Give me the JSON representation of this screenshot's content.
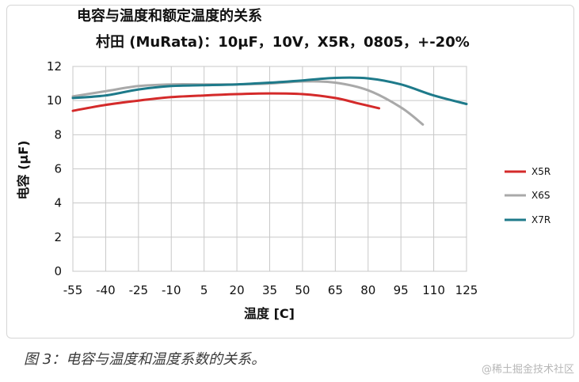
{
  "chart_data": {
    "type": "line",
    "title_line1": "电容与温度和额定温度的关系",
    "title_line2": "村田 (MuRata)：10μF，10V，X5R，0805，+-20%",
    "xlabel": "温度 [C]",
    "ylabel": "电容 (μF)",
    "x_ticks": [
      "-55",
      "-40",
      "-25",
      "-10",
      "5",
      "20",
      "35",
      "50",
      "65",
      "80",
      "95",
      "110",
      "125"
    ],
    "y_ticks": [
      "0",
      "2",
      "4",
      "6",
      "8",
      "10",
      "12"
    ],
    "xlim": [
      -55,
      125
    ],
    "ylim": [
      0,
      12
    ],
    "grid": true,
    "legend_position": "right",
    "series": [
      {
        "name": "X5R",
        "color": "#d42a2a",
        "points": [
          [
            -55,
            9.4
          ],
          [
            -40,
            9.75
          ],
          [
            -25,
            10.0
          ],
          [
            -10,
            10.2
          ],
          [
            5,
            10.3
          ],
          [
            20,
            10.38
          ],
          [
            35,
            10.42
          ],
          [
            50,
            10.38
          ],
          [
            65,
            10.15
          ],
          [
            75,
            9.85
          ],
          [
            85,
            9.55
          ]
        ]
      },
      {
        "name": "X6S",
        "color": "#a9a9a9",
        "points": [
          [
            -55,
            10.25
          ],
          [
            -40,
            10.55
          ],
          [
            -25,
            10.85
          ],
          [
            -10,
            10.95
          ],
          [
            5,
            10.95
          ],
          [
            20,
            10.95
          ],
          [
            35,
            11.0
          ],
          [
            50,
            11.12
          ],
          [
            65,
            11.05
          ],
          [
            80,
            10.6
          ],
          [
            95,
            9.6
          ],
          [
            105,
            8.6
          ]
        ]
      },
      {
        "name": "X7R",
        "color": "#1e7a8a",
        "points": [
          [
            -55,
            10.15
          ],
          [
            -40,
            10.3
          ],
          [
            -25,
            10.65
          ],
          [
            -10,
            10.85
          ],
          [
            5,
            10.9
          ],
          [
            20,
            10.95
          ],
          [
            35,
            11.05
          ],
          [
            50,
            11.18
          ],
          [
            65,
            11.33
          ],
          [
            80,
            11.3
          ],
          [
            95,
            10.95
          ],
          [
            110,
            10.3
          ],
          [
            125,
            9.8
          ]
        ]
      }
    ]
  },
  "caption": "图 3：电容与温度和温度系数的关系。",
  "watermark": "@稀土掘金技术社区"
}
